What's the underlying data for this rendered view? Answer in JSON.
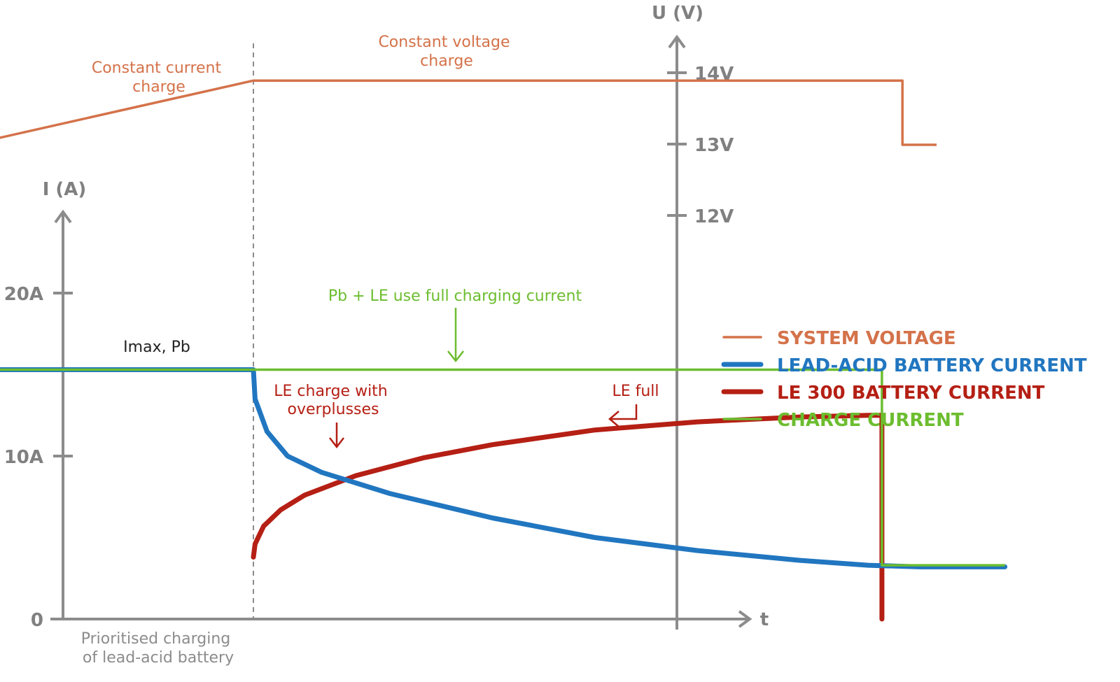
{
  "colors": {
    "axis": "#8c8c8c",
    "system_voltage": "#d4724a",
    "lead_acid_current": "#2176c0",
    "le300_current": "#b51f14",
    "charge_current": "#6cbd2f",
    "divider": "#8c8c8c",
    "phase_label": "#8c8c8c",
    "dark_text": "#222222"
  },
  "chart_data": {
    "type": "line",
    "x_axis": {
      "label": "t"
    },
    "y_axis_current": {
      "label": "I (A)",
      "ticks": [
        {
          "value": 0,
          "label": "0"
        },
        {
          "value": 10,
          "label": "10A"
        },
        {
          "value": 20,
          "label": "20A"
        }
      ]
    },
    "y_axis_voltage": {
      "label": "U (V)",
      "ticks": [
        {
          "value": 12,
          "label": "12V"
        },
        {
          "value": 13,
          "label": "13V"
        },
        {
          "value": 14,
          "label": "14V"
        }
      ]
    },
    "series": [
      {
        "name": "SYSTEM VOLTAGE",
        "axis": "voltage",
        "points": [
          [
            0.12,
            12.94
          ],
          [
            1.0,
            13.89
          ],
          [
            2.9,
            13.89
          ],
          [
            2.9,
            12.99
          ],
          [
            3.0,
            12.99
          ]
        ]
      },
      {
        "name": "LEAD-ACID BATTERY CURRENT",
        "axis": "current",
        "points": [
          [
            -0.05,
            15.3
          ],
          [
            1.0,
            15.3
          ],
          [
            1.005,
            13.5
          ],
          [
            1.04,
            11.5
          ],
          [
            1.1,
            10.0
          ],
          [
            1.2,
            9.0
          ],
          [
            1.4,
            7.7
          ],
          [
            1.7,
            6.2
          ],
          [
            2.0,
            5.0
          ],
          [
            2.3,
            4.2
          ],
          [
            2.6,
            3.6
          ],
          [
            2.8,
            3.3
          ],
          [
            2.95,
            3.2
          ],
          [
            3.2,
            3.2
          ]
        ]
      },
      {
        "name": "LE 300 BATTERY CURRENT",
        "axis": "current",
        "points": [
          [
            1.0,
            3.8
          ],
          [
            1.005,
            4.6
          ],
          [
            1.03,
            5.7
          ],
          [
            1.08,
            6.7
          ],
          [
            1.15,
            7.6
          ],
          [
            1.3,
            8.8
          ],
          [
            1.5,
            9.9
          ],
          [
            1.7,
            10.7
          ],
          [
            2.0,
            11.6
          ],
          [
            2.3,
            12.1
          ],
          [
            2.6,
            12.4
          ],
          [
            2.8,
            12.5
          ],
          [
            2.84,
            12.5
          ],
          [
            2.84,
            0
          ]
        ]
      },
      {
        "name": "CHARGE CURRENT",
        "axis": "current",
        "points": [
          [
            -0.05,
            15.3
          ],
          [
            1.0,
            15.3
          ],
          [
            2.84,
            15.3
          ],
          [
            2.84,
            3.3
          ],
          [
            3.2,
            3.3
          ]
        ]
      }
    ],
    "phase_boundary_x": 1.0,
    "annotations": {
      "constant_current": [
        "Constant current",
        "charge"
      ],
      "constant_voltage": [
        "Constant voltage",
        "charge"
      ],
      "imax": "Imax, Pb",
      "full_current": "Pb + LE use full charging current",
      "le_charge": [
        "LE charge with",
        "overplusses"
      ],
      "le_full": "LE full",
      "prioritised": [
        "Prioritised charging",
        "of lead-acid battery"
      ]
    },
    "legend": {
      "placement": "right",
      "entries": [
        "SYSTEM VOLTAGE",
        "LEAD-ACID BATTERY CURRENT",
        "LE 300 BATTERY CURRENT",
        "CHARGE CURRENT"
      ]
    }
  }
}
